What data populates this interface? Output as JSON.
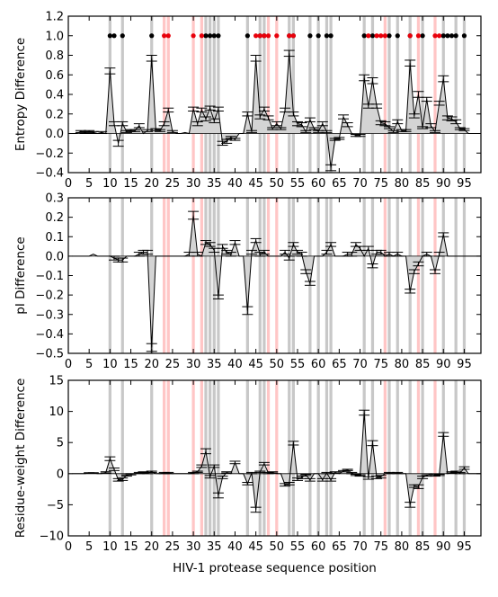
{
  "xlabel": "HIV-1 protease sequence position",
  "colors": {
    "highlight_gray": "#c8c8c8",
    "highlight_red": "#ffc6c6",
    "marker_black": "#000000",
    "marker_red": "#e8000b",
    "line": "#000000",
    "fill": "#d4d4d4"
  },
  "highlights": {
    "gray": [
      10,
      13,
      20,
      33,
      34,
      35,
      36,
      43,
      46,
      47,
      53,
      54,
      58,
      60,
      62,
      63,
      71,
      73,
      77,
      79,
      82,
      85,
      90,
      93,
      95
    ],
    "red": [
      23,
      24,
      30,
      32,
      48,
      50,
      76,
      84,
      88
    ]
  },
  "chart_data": [
    {
      "type": "line",
      "ylabel": "Entropy Difference",
      "ylim": [
        -0.4,
        1.2
      ],
      "yticks": [
        "−0.4",
        "−0.2",
        "0.0",
        "0.2",
        "0.4",
        "0.6",
        "0.8",
        "1.0",
        "1.2"
      ],
      "xlim": [
        0,
        99
      ],
      "xticks": [
        "0",
        "5",
        "10",
        "15",
        "20",
        "25",
        "30",
        "35",
        "40",
        "45",
        "50",
        "55",
        "60",
        "65",
        "70",
        "75",
        "80",
        "85",
        "90",
        "95"
      ],
      "grid": false,
      "markers_at_y": 1.0,
      "markers_black": [
        10,
        11,
        13,
        20,
        33,
        34,
        35,
        36,
        43,
        46,
        47,
        53,
        54,
        58,
        60,
        62,
        63,
        71,
        73,
        77,
        79,
        82,
        85,
        90,
        91,
        92,
        93,
        95
      ],
      "markers_red": [
        23,
        24,
        30,
        32,
        45,
        46,
        47,
        48,
        50,
        53,
        54,
        72,
        74,
        75,
        76,
        82,
        84,
        88,
        89
      ],
      "series": [
        {
          "x": [
            1,
            2,
            3,
            4,
            5,
            6,
            7,
            8,
            9,
            10,
            11,
            12,
            13,
            14,
            15,
            16,
            17,
            18,
            19,
            20,
            21,
            22,
            23,
            24,
            25,
            26,
            27,
            28,
            29,
            30,
            31,
            32,
            33,
            34,
            35,
            36,
            37,
            38,
            39,
            40,
            41,
            42,
            43,
            44,
            45,
            46,
            47,
            48,
            49,
            50,
            51,
            52,
            53,
            54,
            55,
            56,
            57,
            58,
            59,
            60,
            61,
            62,
            63,
            64,
            65,
            66,
            67,
            68,
            69,
            70,
            71,
            72,
            73,
            74,
            75,
            76,
            77,
            78,
            79,
            80,
            81,
            82,
            83,
            84,
            85,
            86,
            87,
            88,
            89,
            90,
            91,
            92,
            93,
            94,
            95,
            96,
            97,
            98,
            99
          ],
          "y": [
            0,
            0,
            0.02,
            0.01,
            0.02,
            0.01,
            0,
            0.01,
            0,
            0.64,
            0.1,
            -0.1,
            0.1,
            0.02,
            0.03,
            0.03,
            0.08,
            0,
            0.03,
            0.77,
            0.04,
            0.03,
            0.1,
            0.24,
            0.02,
            0,
            0,
            0.01,
            0,
            0.25,
            0.1,
            0.24,
            0.15,
            0.26,
            0.13,
            0.25,
            -0.1,
            -0.08,
            -0.04,
            -0.06,
            0,
            0,
            0.2,
            0.02,
            0.77,
            0.17,
            0.25,
            0.16,
            0.05,
            0.1,
            0.05,
            0.24,
            0.82,
            0.2,
            0.1,
            0.09,
            0.02,
            0.14,
            0.05,
            0.02,
            0.1,
            0.02,
            -0.35,
            -0.06,
            -0.05,
            0.17,
            0.09,
            0,
            -0.02,
            -0.02,
            0.57,
            0.28,
            0.54,
            0.28,
            0.11,
            0.1,
            0.06,
            0.02,
            0.12,
            0.03,
            0.03,
            0.72,
            0.18,
            0.4,
            0.06,
            0.35,
            0.08,
            0.02,
            0.31,
            0.56,
            0.16,
            0.15,
            0.12,
            0.05,
            0.04,
            0,
            0,
            0,
            0
          ],
          "err": [
            0,
            0,
            0.01,
            0.01,
            0.01,
            0.01,
            0,
            0.01,
            0,
            0.03,
            0.02,
            0.03,
            0.02,
            0.01,
            0.01,
            0.01,
            0.02,
            0,
            0.01,
            0.03,
            0.01,
            0.01,
            0.02,
            0.02,
            0.01,
            0,
            0,
            0,
            0,
            0.02,
            0.02,
            0.02,
            0.02,
            0.02,
            0.02,
            0.02,
            0.02,
            0.02,
            0.01,
            0.01,
            0,
            0,
            0.02,
            0.01,
            0.03,
            0.02,
            0.02,
            0.02,
            0.01,
            0.02,
            0.01,
            0.02,
            0.03,
            0.02,
            0.02,
            0.02,
            0.01,
            0.02,
            0.01,
            0.01,
            0.02,
            0.01,
            0.03,
            0.01,
            0.01,
            0.02,
            0.02,
            0,
            0.01,
            0.01,
            0.03,
            0.02,
            0.03,
            0.02,
            0.02,
            0.02,
            0.01,
            0.01,
            0.02,
            0.01,
            0.01,
            0.03,
            0.02,
            0.03,
            0.01,
            0.02,
            0.02,
            0.01,
            0.02,
            0.03,
            0.02,
            0.02,
            0.02,
            0.01,
            0.01,
            0,
            0,
            0,
            0
          ]
        }
      ]
    },
    {
      "type": "line",
      "ylabel": "pI Difference",
      "ylim": [
        -0.5,
        0.3
      ],
      "yticks": [
        "−0.5",
        "−0.4",
        "−0.3",
        "−0.2",
        "−0.1",
        "0.0",
        "0.1",
        "0.2",
        "0.3"
      ],
      "xlim": [
        0,
        99
      ],
      "xticks": [
        "0",
        "5",
        "10",
        "15",
        "20",
        "25",
        "30",
        "35",
        "40",
        "45",
        "50",
        "55",
        "60",
        "65",
        "70",
        "75",
        "80",
        "85",
        "90",
        "95"
      ],
      "grid": false,
      "series": [
        {
          "x": [
            1,
            2,
            3,
            4,
            5,
            6,
            7,
            8,
            9,
            10,
            11,
            12,
            13,
            14,
            15,
            16,
            17,
            18,
            19,
            20,
            21,
            22,
            23,
            24,
            25,
            26,
            27,
            28,
            29,
            30,
            31,
            32,
            33,
            34,
            35,
            36,
            37,
            38,
            39,
            40,
            41,
            42,
            43,
            44,
            45,
            46,
            47,
            48,
            49,
            50,
            51,
            52,
            53,
            54,
            55,
            56,
            57,
            58,
            59,
            60,
            61,
            62,
            63,
            64,
            65,
            66,
            67,
            68,
            69,
            70,
            71,
            72,
            73,
            74,
            75,
            76,
            77,
            78,
            79,
            80,
            81,
            82,
            83,
            84,
            85,
            86,
            87,
            88,
            89,
            90,
            91,
            92,
            93,
            94,
            95,
            96,
            97,
            98,
            99
          ],
          "y": [
            0,
            0,
            0,
            0,
            0,
            0.01,
            0,
            0,
            0,
            0,
            -0.01,
            -0.02,
            -0.02,
            0,
            0,
            0,
            0.01,
            0.02,
            0.02,
            -0.47,
            0,
            0,
            0,
            0,
            0,
            0,
            0,
            0,
            0.01,
            0.21,
            0.01,
            0,
            0.07,
            0.06,
            0.03,
            -0.21,
            0.05,
            0.02,
            0.01,
            0.07,
            0,
            0,
            -0.28,
            0.02,
            0.08,
            0.01,
            0.02,
            0,
            0,
            0,
            0,
            0.02,
            -0.01,
            0.06,
            0.02,
            0.01,
            -0.08,
            -0.14,
            0,
            0,
            0,
            0.02,
            0.06,
            0,
            0,
            0,
            0.01,
            0.01,
            0.06,
            0.04,
            0,
            0.04,
            -0.05,
            0.02,
            0.02,
            0,
            0.01,
            0,
            0.01,
            0,
            0,
            -0.18,
            -0.08,
            -0.04,
            0,
            0.01,
            0,
            -0.08,
            0.01,
            0.11,
            0,
            0,
            0,
            0,
            0,
            0,
            0,
            0,
            0
          ],
          "err": [
            0,
            0,
            0,
            0,
            0,
            0,
            0,
            0,
            0,
            0,
            0.01,
            0.01,
            0.01,
            0,
            0,
            0,
            0.01,
            0.01,
            0.01,
            0.02,
            0,
            0,
            0,
            0,
            0,
            0,
            0,
            0,
            0.01,
            0.02,
            0.01,
            0,
            0.01,
            0.01,
            0.01,
            0.01,
            0.01,
            0.01,
            0.01,
            0.01,
            0,
            0,
            0.02,
            0.01,
            0.01,
            0.01,
            0.01,
            0,
            0,
            0,
            0,
            0.01,
            0.01,
            0.01,
            0.01,
            0.01,
            0.01,
            0.01,
            0,
            0,
            0,
            0.01,
            0.01,
            0,
            0,
            0,
            0.01,
            0.01,
            0.01,
            0.01,
            0,
            0.01,
            0.01,
            0.01,
            0.01,
            0,
            0.01,
            0,
            0.01,
            0,
            0,
            0.01,
            0.01,
            0.01,
            0,
            0.01,
            0,
            0.01,
            0.01,
            0.01,
            0,
            0,
            0,
            0,
            0,
            0,
            0,
            0,
            0
          ]
        }
      ]
    },
    {
      "type": "line",
      "ylabel": "Residue-weight Difference",
      "ylim": [
        -10,
        15
      ],
      "yticks": [
        "−10",
        "−5",
        "0",
        "5",
        "10",
        "15"
      ],
      "xlim": [
        0,
        99
      ],
      "xticks": [
        "0",
        "5",
        "10",
        "15",
        "20",
        "25",
        "30",
        "35",
        "40",
        "45",
        "50",
        "55",
        "60",
        "65",
        "70",
        "75",
        "80",
        "85",
        "90",
        "95"
      ],
      "grid": false,
      "series": [
        {
          "x": [
            1,
            2,
            3,
            4,
            5,
            6,
            7,
            8,
            9,
            10,
            11,
            12,
            13,
            14,
            15,
            16,
            17,
            18,
            19,
            20,
            21,
            22,
            23,
            24,
            25,
            26,
            27,
            28,
            29,
            30,
            31,
            32,
            33,
            34,
            35,
            36,
            37,
            38,
            39,
            40,
            41,
            42,
            43,
            44,
            45,
            46,
            47,
            48,
            49,
            50,
            51,
            52,
            53,
            54,
            55,
            56,
            57,
            58,
            59,
            60,
            61,
            62,
            63,
            64,
            65,
            66,
            67,
            68,
            69,
            70,
            71,
            72,
            73,
            74,
            75,
            76,
            77,
            78,
            79,
            80,
            81,
            82,
            83,
            84,
            85,
            86,
            87,
            88,
            89,
            90,
            91,
            92,
            93,
            94,
            95,
            96,
            97,
            98,
            99
          ],
          "y": [
            0,
            0,
            0,
            0,
            0.1,
            0.1,
            0,
            0,
            0.2,
            2.4,
            0.7,
            -1.0,
            -0.9,
            -0.3,
            -0.1,
            0,
            0.1,
            0.2,
            0.1,
            0.3,
            0,
            0,
            0.1,
            0.1,
            0,
            0,
            0,
            0,
            0,
            0.1,
            0.3,
            1.2,
            3.6,
            -0.5,
            1.2,
            -3.5,
            -0.6,
            0.2,
            0,
            1.8,
            0,
            0,
            -1.6,
            0.1,
            -5.8,
            0.3,
            1.6,
            0.1,
            0.2,
            0,
            0,
            -1.8,
            -1.6,
            4.9,
            -0.9,
            -0.6,
            -0.2,
            -1.0,
            0,
            0,
            -1.0,
            0.1,
            -1.0,
            0.2,
            0,
            0.4,
            0.6,
            0.1,
            -0.2,
            -0.3,
            9.8,
            -0.7,
            4.9,
            -0.6,
            -0.5,
            0,
            0.1,
            0,
            0.1,
            0,
            0,
            -5.0,
            -2.0,
            -2.1,
            -0.6,
            -0.3,
            0,
            -0.3,
            -0.2,
            6.3,
            0,
            0.2,
            0.3,
            0.1,
            0.9,
            0,
            0,
            0,
            0
          ],
          "err": [
            0,
            0,
            0,
            0,
            0.05,
            0.05,
            0,
            0,
            0.1,
            0.3,
            0.2,
            0.2,
            0.2,
            0.1,
            0.1,
            0,
            0.1,
            0.1,
            0.1,
            0.1,
            0,
            0,
            0.1,
            0.1,
            0,
            0,
            0,
            0,
            0,
            0.1,
            0.1,
            0.2,
            0.4,
            0.2,
            0.2,
            0.4,
            0.2,
            0.1,
            0,
            0.2,
            0,
            0,
            0.2,
            0.1,
            0.4,
            0.1,
            0.2,
            0.1,
            0.1,
            0,
            0,
            0.2,
            0.2,
            0.3,
            0.2,
            0.2,
            0.1,
            0.2,
            0,
            0,
            0.2,
            0.1,
            0.2,
            0.1,
            0,
            0.1,
            0.1,
            0.1,
            0.1,
            0.1,
            0.4,
            0.2,
            0.4,
            0.2,
            0.2,
            0,
            0.1,
            0,
            0.1,
            0,
            0,
            0.4,
            0.2,
            0.3,
            0.2,
            0.1,
            0,
            0.1,
            0.1,
            0.3,
            0,
            0.1,
            0.1,
            0.1,
            0.2,
            0,
            0,
            0,
            0
          ]
        }
      ]
    }
  ]
}
